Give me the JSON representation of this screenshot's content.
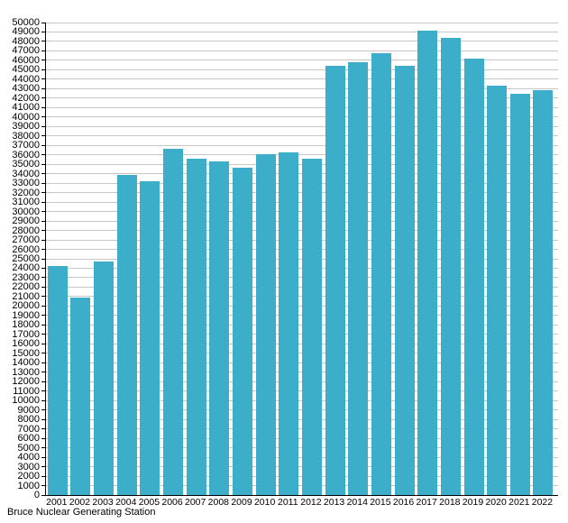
{
  "caption": "Bruce Nuclear Generating Station",
  "chart_data": {
    "type": "bar",
    "title": "Bruce Nuclear Generating Station",
    "xlabel": "",
    "ylabel": "",
    "categories": [
      "2001",
      "2002",
      "2003",
      "2004",
      "2005",
      "2006",
      "2007",
      "2008",
      "2009",
      "2010",
      "2011",
      "2012",
      "2013",
      "2014",
      "2015",
      "2016",
      "2017",
      "2018",
      "2019",
      "2020",
      "2021",
      "2022"
    ],
    "values": [
      24250,
      20900,
      24750,
      33900,
      33200,
      36650,
      35600,
      35300,
      34650,
      36100,
      36300,
      35600,
      45400,
      45800,
      46800,
      45400,
      49100,
      48400,
      46200,
      43300,
      42500,
      42800
    ],
    "ylim": [
      0,
      50000
    ],
    "y_tick_step": 1000,
    "y_ticks": [
      0,
      1000,
      2000,
      3000,
      4000,
      5000,
      6000,
      7000,
      8000,
      9000,
      10000,
      11000,
      12000,
      13000,
      14000,
      15000,
      16000,
      17000,
      18000,
      19000,
      20000,
      21000,
      22000,
      23000,
      24000,
      25000,
      26000,
      27000,
      28000,
      29000,
      30000,
      31000,
      32000,
      33000,
      34000,
      35000,
      36000,
      37000,
      38000,
      39000,
      40000,
      41000,
      42000,
      43000,
      44000,
      45000,
      46000,
      47000,
      48000,
      49000,
      50000
    ],
    "grid": true,
    "legend": "none",
    "bar_color": "#3caec9",
    "gridline_color": "#c6c6c6",
    "axis_color": "#000000",
    "text_color": "#000000"
  }
}
